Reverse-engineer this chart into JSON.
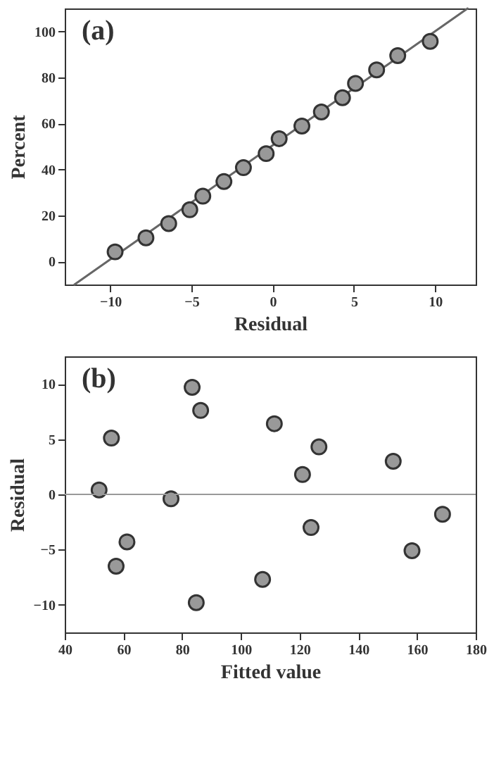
{
  "chart_data": [
    {
      "type": "scatter",
      "annotations": [
        "(a)"
      ],
      "xlabel": "Residual",
      "ylabel": "Percent",
      "xlim": [
        -12.8,
        12.5
      ],
      "ylim": [
        -10,
        110
      ],
      "xticks": [
        -10,
        -5,
        0,
        5,
        10
      ],
      "yticks": [
        0,
        20,
        40,
        60,
        80,
        100
      ],
      "grid": false,
      "marker": "circle",
      "series": [
        {
          "type": "line",
          "marker": "none",
          "color": "#666666",
          "x": [
            -12.2,
            12.0
          ],
          "values": [
            -10,
            110
          ]
        },
        {
          "color": "#999999",
          "x": [
            -9.7,
            -7.8,
            -6.4,
            -5.1,
            -4.3,
            -3.0,
            -1.8,
            -0.4,
            0.4,
            1.8,
            3.0,
            4.3,
            5.1,
            6.4,
            7.7,
            9.7
          ],
          "values": [
            4.2,
            10.3,
            16.5,
            22.5,
            28.4,
            34.8,
            40.8,
            46.9,
            53.4,
            58.9,
            65.0,
            71.2,
            77.4,
            83.3,
            89.5,
            95.7
          ]
        }
      ]
    },
    {
      "type": "scatter",
      "annotations": [
        "(b)"
      ],
      "xlabel": "Fitted value",
      "ylabel": "Residual",
      "xlim": [
        40,
        180
      ],
      "ylim": [
        -12.5,
        12.5
      ],
      "xticks": [
        40,
        60,
        80,
        100,
        120,
        140,
        160,
        180
      ],
      "yticks": [
        -10,
        -5,
        0,
        5,
        10
      ],
      "grid": false,
      "marker": "circle",
      "ref_lines": [
        {
          "axis": "y",
          "value": 0,
          "color": "#999999"
        }
      ],
      "series": [
        {
          "color": "#999999",
          "x": [
            51.7,
            55.9,
            57.5,
            61.2,
            76.2,
            83.4,
            84.8,
            86.3,
            107.4,
            111.4,
            121.0,
            123.9,
            126.6,
            151.9,
            158.3,
            168.7
          ],
          "values": [
            0.4,
            5.1,
            -6.5,
            -4.3,
            -0.4,
            9.7,
            -9.8,
            7.6,
            -7.7,
            6.4,
            1.8,
            -3.0,
            4.3,
            3.0,
            -5.1,
            -1.8
          ]
        }
      ]
    }
  ]
}
